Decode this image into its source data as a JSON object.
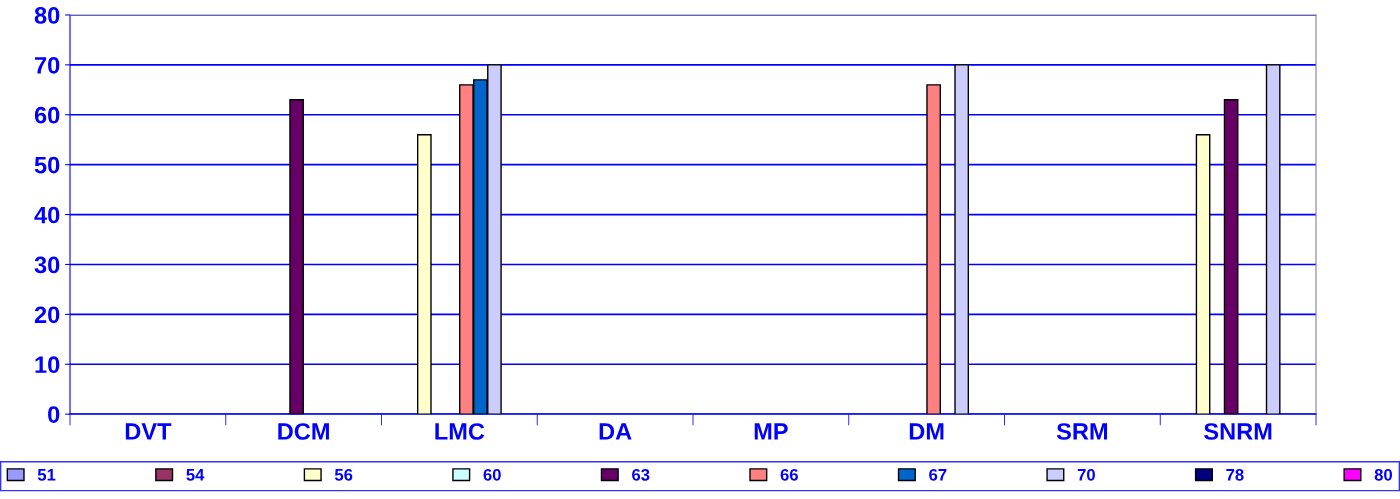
{
  "chart_data": {
    "type": "bar",
    "categories": [
      "DVT",
      "DCM",
      "LMC",
      "DA",
      "MP",
      "DM",
      "SRM",
      "SNRM"
    ],
    "series": [
      {
        "name": "51",
        "color": "#9999ff",
        "values": [
          null,
          null,
          null,
          null,
          null,
          null,
          null,
          null
        ]
      },
      {
        "name": "54",
        "color": "#993366",
        "values": [
          null,
          null,
          null,
          null,
          null,
          null,
          null,
          null
        ]
      },
      {
        "name": "56",
        "color": "#ffffcc",
        "values": [
          null,
          null,
          56,
          null,
          null,
          null,
          null,
          56
        ]
      },
      {
        "name": "60",
        "color": "#ccffff",
        "values": [
          null,
          null,
          null,
          null,
          null,
          null,
          null,
          null
        ]
      },
      {
        "name": "63",
        "color": "#660066",
        "values": [
          null,
          63,
          null,
          null,
          null,
          null,
          null,
          63
        ]
      },
      {
        "name": "66",
        "color": "#ff8080",
        "values": [
          null,
          null,
          66,
          null,
          null,
          66,
          null,
          null
        ]
      },
      {
        "name": "67",
        "color": "#0066cc",
        "values": [
          null,
          null,
          67,
          null,
          null,
          null,
          null,
          null
        ]
      },
      {
        "name": "70",
        "color": "#ccccff",
        "values": [
          null,
          null,
          70,
          null,
          null,
          70,
          null,
          70
        ]
      },
      {
        "name": "78",
        "color": "#000080",
        "values": [
          null,
          null,
          null,
          null,
          null,
          null,
          null,
          null
        ]
      },
      {
        "name": "80",
        "color": "#ff00ff",
        "values": [
          null,
          null,
          null,
          null,
          null,
          null,
          null,
          null
        ]
      }
    ],
    "ylim": [
      0,
      80
    ],
    "yticks": [
      0,
      10,
      20,
      30,
      40,
      50,
      60,
      70,
      80
    ],
    "grid": "y",
    "legend": "bottom"
  }
}
